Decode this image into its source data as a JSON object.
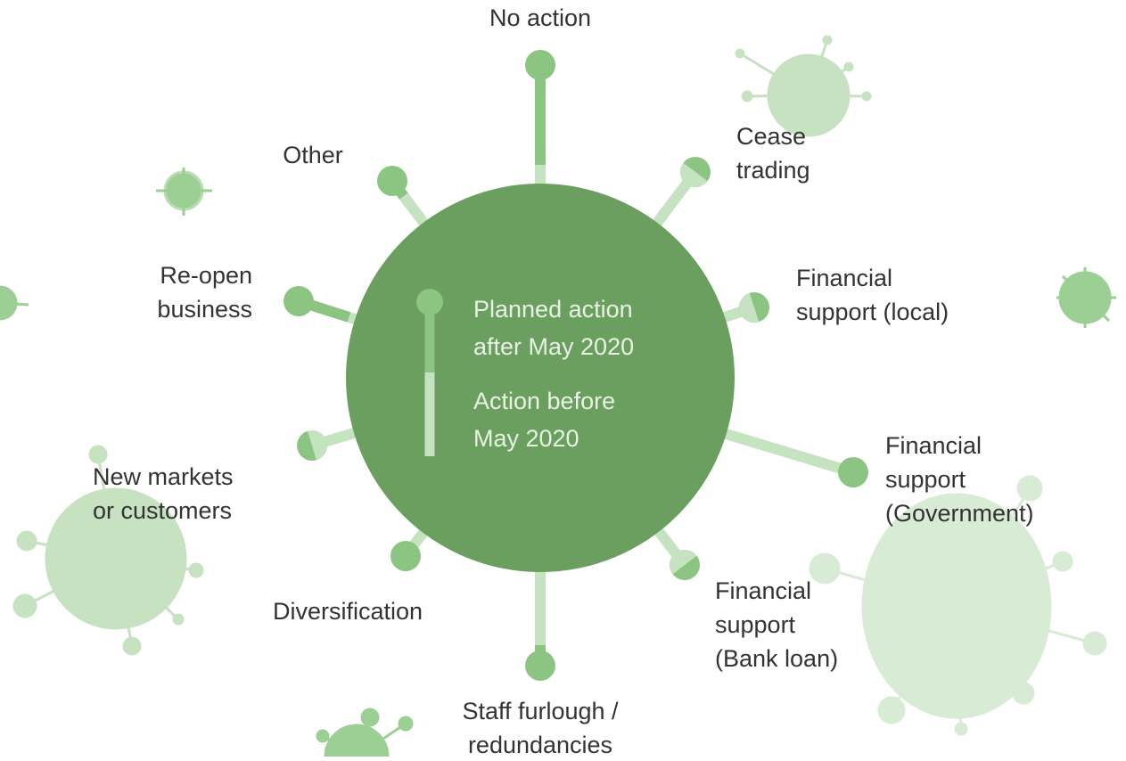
{
  "spokes": [
    {
      "label": [
        "No action"
      ]
    },
    {
      "label": [
        "Cease",
        "trading"
      ]
    },
    {
      "label": [
        "Financial",
        "support  (local)"
      ]
    },
    {
      "label": [
        "Financial",
        "support",
        "(Government)"
      ]
    },
    {
      "label": [
        "Financial",
        "support",
        "(Bank loan)"
      ]
    },
    {
      "label": [
        "Staff furlough /",
        "redundancies"
      ]
    },
    {
      "label": [
        "Diversification"
      ]
    },
    {
      "label": [
        "New markets",
        "or customers"
      ]
    },
    {
      "label": [
        "Re-open",
        "business"
      ]
    },
    {
      "label": [
        "Other"
      ]
    }
  ],
  "legend": {
    "planned": [
      "Planned action",
      "after May 2020"
    ],
    "before": [
      "Action before",
      "May 2020"
    ]
  }
}
